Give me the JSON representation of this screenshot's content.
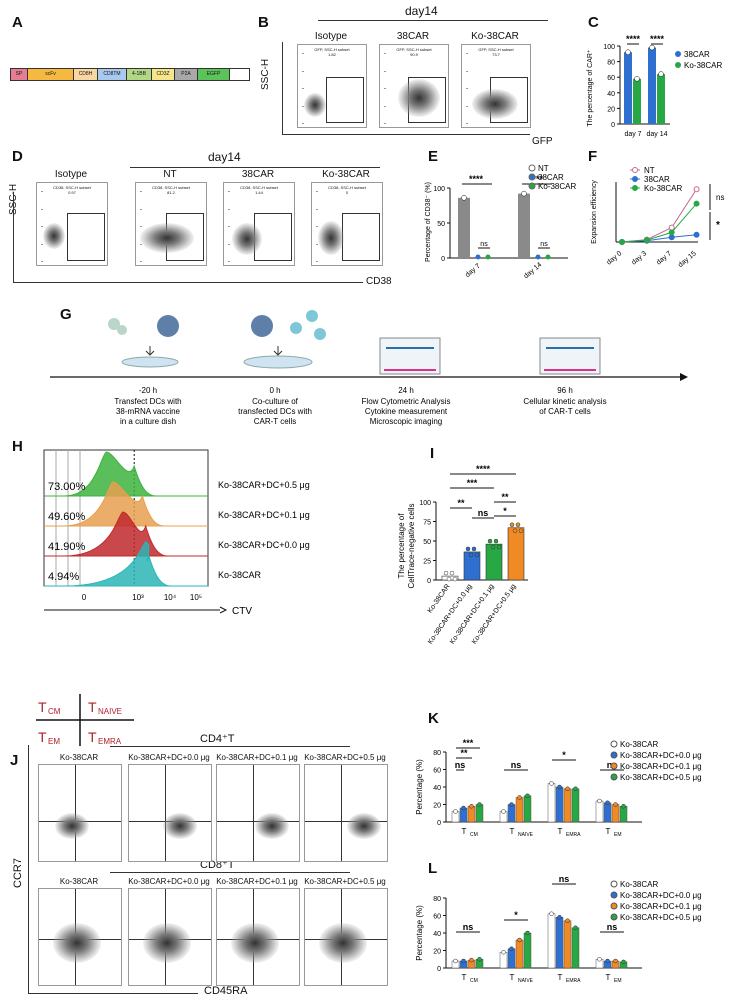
{
  "letters": {
    "A": "A",
    "B": "B",
    "C": "C",
    "D": "D",
    "E": "E",
    "F": "F",
    "G": "G",
    "H": "H",
    "I": "I",
    "J": "J",
    "K": "K",
    "L": "L"
  },
  "panelA": {
    "segments": [
      {
        "label": "SP",
        "color": "#e77d92"
      },
      {
        "label": "scFv",
        "color": "#f5b942"
      },
      {
        "label": "CD8H",
        "color": "#f8d7a3"
      },
      {
        "label": "CD8TM",
        "color": "#a9c9ef"
      },
      {
        "label": "4-1BB",
        "color": "#b2d886"
      },
      {
        "label": "CD3Z",
        "color": "#f6e58a"
      },
      {
        "label": "P2A",
        "color": "#a9a9a9"
      },
      {
        "label": "EGFP",
        "color": "#5cc35a"
      }
    ]
  },
  "panelB": {
    "day": "day14",
    "ylabel": "SSC-H",
    "xlabel": "GFP",
    "plots": [
      {
        "title": "Isotype",
        "gate": "GFP, SSC-H subset",
        "value": "1.82"
      },
      {
        "title": "38CAR",
        "gate": "GFP, SSC-H subset",
        "value": "90.9"
      },
      {
        "title": "Ko-38CAR",
        "gate": "GFP, SSC-H subset",
        "value": "73.7"
      }
    ]
  },
  "panelC": {
    "ylabel": "The percentage of CAR⁺",
    "legend": [
      "38CAR",
      "Ko-38CAR"
    ],
    "sig": [
      "****",
      "****"
    ],
    "ticks": [
      "0",
      "20",
      "40",
      "60",
      "80",
      "100"
    ],
    "categories": [
      "day 7",
      "day 14"
    ]
  },
  "panelD": {
    "day": "day14",
    "ylabel": "SSC-H",
    "xlabel": "CD38",
    "plots": [
      {
        "title": "Isotype",
        "gate": "CD38, SSC-H subset",
        "value": "0.97"
      },
      {
        "title": "NT",
        "gate": "CD38, SSC-H subset",
        "value": "81.2"
      },
      {
        "title": "38CAR",
        "gate": "CD38, SSC-H subset",
        "value": "1.44"
      },
      {
        "title": "Ko-38CAR",
        "gate": "CD38, SSC-H subset",
        "value": "0"
      }
    ]
  },
  "panelE": {
    "ylabel": "Percentage of CD38⁻ (%)",
    "legend": [
      "NT",
      "38CAR",
      "Ko-38CAR"
    ],
    "sig": [
      "****",
      "****"
    ],
    "ns": [
      "ns",
      "ns"
    ],
    "ticks": [
      "0",
      "50",
      "100"
    ],
    "categories": [
      "day 7",
      "day 14"
    ]
  },
  "panelF": {
    "ylabel": "Expansion efficiency",
    "legend": [
      "NT",
      "38CAR",
      "Ko-38CAR"
    ],
    "categories": [
      "day 0",
      "day 3",
      "day 7",
      "day 15"
    ],
    "ns": "ns",
    "star": "*"
  },
  "panelG": {
    "steps": [
      {
        "time": "-20 h",
        "desc": "Transfect DCs with\n38-mRNA vaccine\nin a culture dish"
      },
      {
        "time": "0 h",
        "desc": "Co-culture of\ntransfected DCs with\nCAR-T cells"
      },
      {
        "time": "24 h",
        "desc": "Flow Cytometric Analysis\nCytokine measurement\nMicroscopic imaging"
      },
      {
        "time": "96 h",
        "desc": "Cellular kinetic analysis\nof CAR-T cells"
      }
    ]
  },
  "panelH": {
    "xlabel": "CTV",
    "rows": [
      {
        "pct": "73.00%",
        "label": "Ko-38CAR+DC+0.5 μg",
        "color": "#3db33d"
      },
      {
        "pct": "49.60%",
        "label": "Ko-38CAR+DC+0.1 μg",
        "color": "#e8a050"
      },
      {
        "pct": "41.90%",
        "label": "Ko-38CAR+DC+0.0 μg",
        "color": "#c0282d"
      },
      {
        "pct": "4.94%",
        "label": "Ko-38CAR",
        "color": "#2bb5b5"
      }
    ],
    "ticks": [
      "0",
      "10³",
      "10⁴",
      "10⁵"
    ]
  },
  "panelI": {
    "ylabel1": "The percentage of",
    "ylabel2": "CellTrace-negative cells",
    "ticks": [
      "0",
      "25",
      "50",
      "75",
      "100"
    ],
    "categories": [
      "Ko-38CAR",
      "Ko-38CAR+DC+0.0 μg",
      "Ko-38CAR+DC+0.1 μg",
      "Ko-38CAR+DC+0.5 μg"
    ],
    "sig": [
      "****",
      "***",
      "**",
      "ns",
      "**",
      "*"
    ]
  },
  "quad": {
    "tl": "T",
    "tl_sub": "CM",
    "tr": "T",
    "tr_sub": "NAIVE",
    "bl": "T",
    "bl_sub": "EM",
    "br": "T",
    "br_sub": "EMRA"
  },
  "panelJ": {
    "cd4": "CD4⁺T",
    "cd8": "CD8⁺T",
    "ylabel": "CCR7",
    "xlabel": "CD45RA",
    "titles": [
      "Ko-38CAR",
      "Ko-38CAR+DC+0.0 μg",
      "Ko-38CAR+DC+0.1 μg",
      "Ko-38CAR+DC+0.5 μg"
    ]
  },
  "panelK": {
    "ylabel": "Percentage (%)",
    "ticks": [
      "0",
      "20",
      "40",
      "60",
      "80"
    ],
    "legend": [
      "Ko-38CAR",
      "Ko-38CAR+DC+0.0 μg",
      "Ko-38CAR+DC+0.1 μg",
      "Ko-38CAR+DC+0.5 μg"
    ],
    "categories": [
      "CM",
      "NAIVE",
      "EMRA",
      "EM"
    ],
    "sig": [
      "***",
      "**",
      "ns",
      "ns",
      "*",
      "ns"
    ]
  },
  "panelL": {
    "ylabel": "Percentage (%)",
    "ticks": [
      "0",
      "20",
      "40",
      "60",
      "80"
    ],
    "legend": [
      "Ko-38CAR",
      "Ko-38CAR+DC+0.0 μg",
      "Ko-38CAR+DC+0.1 μg",
      "Ko-38CAR+DC+0.5 μg"
    ],
    "categories": [
      "CM",
      "NAIVE",
      "EMRA",
      "EM"
    ],
    "sig": [
      "ns",
      "*",
      "ns",
      "ns"
    ]
  },
  "colors": {
    "blue": "#2f6fcf",
    "green": "#28a745",
    "orange": "#f08a24",
    "grey": "#8a8a8a",
    "white": "#ffffff"
  }
}
